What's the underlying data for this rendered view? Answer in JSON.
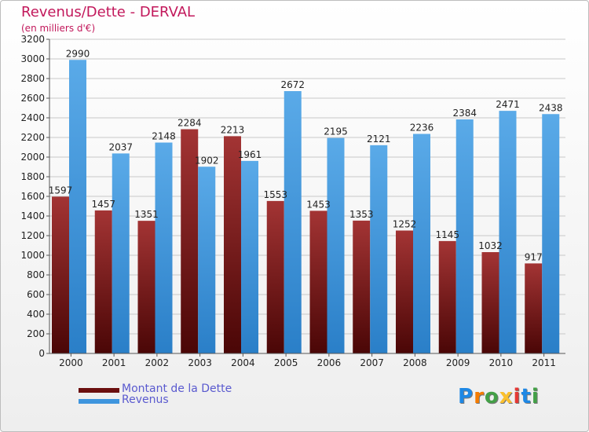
{
  "title": "Revenus/Dette - DERVAL",
  "subtitle": "(en milliers d'€)",
  "chart_data": {
    "type": "bar",
    "title": "Revenus/Dette - DERVAL",
    "ylabel": "(en milliers d'€)",
    "xlabel": "",
    "ylim": [
      0,
      3200
    ],
    "ytick_step": 200,
    "grid": true,
    "categories": [
      "2000",
      "2001",
      "2002",
      "2003",
      "2004",
      "2005",
      "2006",
      "2007",
      "2008",
      "2009",
      "2010",
      "2011"
    ],
    "series": [
      {
        "name": "Montant de la Dette",
        "color": "#8b1c1c",
        "values": [
          1597,
          1457,
          1351,
          2284,
          2213,
          1553,
          1453,
          1353,
          1252,
          1145,
          1032,
          917
        ]
      },
      {
        "name": "Revenus",
        "color": "#3e95de",
        "values": [
          2990,
          2037,
          2148,
          1902,
          1961,
          2672,
          2195,
          2121,
          2236,
          2384,
          2471,
          2438
        ]
      }
    ]
  },
  "legend": {
    "debt_label": "Montant de la Dette",
    "revenue_label": "Revenus"
  },
  "logo": {
    "letters": [
      "P",
      "r",
      "o",
      "x",
      "i",
      "t",
      "i"
    ],
    "colors": [
      "#1e88e5",
      "#f57c00",
      "#43a047",
      "#fbc02d",
      "#e53935",
      "#1e88e5",
      "#43a047"
    ]
  }
}
